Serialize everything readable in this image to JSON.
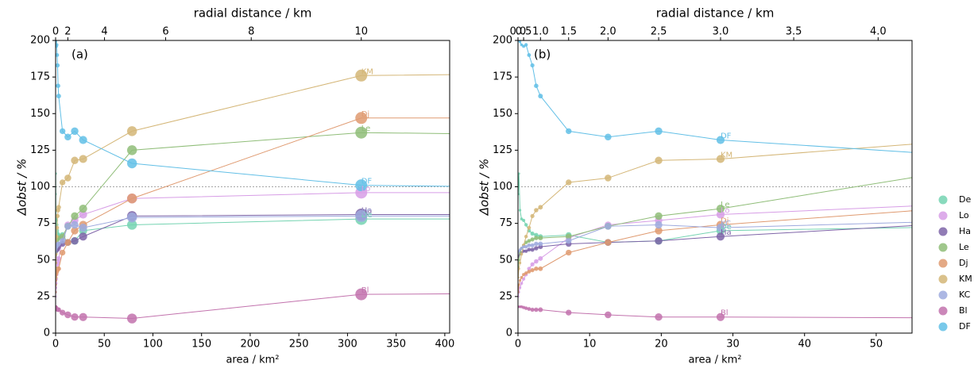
{
  "chart_data": [
    {
      "type": "line",
      "panel_label": "(a)",
      "x_label": "area / km²",
      "y_label": "Δobst / %",
      "x2_label": "radial distance / km",
      "xlim": [
        0,
        405
      ],
      "ylim": [
        0,
        200
      ],
      "xticks": [
        0,
        50,
        100,
        150,
        200,
        250,
        300,
        350,
        400
      ],
      "yticks": [
        0,
        25,
        50,
        75,
        100,
        125,
        150,
        175,
        200
      ],
      "x2ticks": [
        0,
        2,
        4,
        6,
        8,
        10
      ],
      "hline": 100,
      "x": [
        0.03,
        0.13,
        0.28,
        0.5,
        0.79,
        1.13,
        1.54,
        2.01,
        2.54,
        3.14,
        7.07,
        12.57,
        19.63,
        28.27,
        78.54,
        314.16,
        452.39
      ],
      "series": [
        {
          "name": "De",
          "color": "#74d3b1",
          "values": [
            95,
            109,
            84,
            78,
            77,
            74,
            70,
            68,
            67,
            66,
            67,
            62,
            63,
            70,
            74,
            78,
            78
          ]
        },
        {
          "name": "Lo",
          "color": "#d79de6",
          "values": [
            25,
            28,
            31,
            34,
            37,
            40,
            44,
            47,
            49,
            51,
            65,
            74,
            77,
            81,
            92,
            96,
            96
          ]
        },
        {
          "name": "Ha",
          "color": "#7e65a8",
          "values": [
            52,
            53,
            54,
            55,
            56,
            56,
            57,
            57,
            58,
            59,
            61,
            62,
            63,
            66,
            80,
            81,
            81
          ]
        },
        {
          "name": "Le",
          "color": "#8fbd78",
          "values": [
            45,
            50,
            55,
            58,
            60,
            62,
            63,
            64,
            65,
            65,
            66,
            73,
            80,
            85,
            125,
            137,
            136
          ]
        },
        {
          "name": "Dj",
          "color": "#df9a70",
          "values": [
            28,
            33,
            36,
            38,
            40,
            41,
            42,
            43,
            44,
            44,
            55,
            62,
            70,
            74,
            92,
            147,
            147
          ]
        },
        {
          "name": "KM",
          "color": "#d4b677",
          "values": [
            38,
            44,
            48,
            54,
            60,
            66,
            72,
            80,
            84,
            86,
            103,
            106,
            118,
            119,
            138,
            176,
            177
          ]
        },
        {
          "name": "KC",
          "color": "#9eaade",
          "values": [
            55,
            56,
            57,
            58,
            59,
            59,
            60,
            60,
            61,
            61,
            63,
            73,
            74,
            72,
            79,
            80,
            80
          ]
        },
        {
          "name": "Bl",
          "color": "#c272ad",
          "values": [
            18,
            18,
            18,
            18,
            17.5,
            17,
            16.5,
            16,
            16,
            16,
            14,
            12.5,
            11,
            11,
            10,
            26.5,
            27
          ]
        },
        {
          "name": "DF",
          "color": "#62bfe6",
          "values": [
            200,
            200,
            199,
            197,
            196,
            197,
            190,
            183,
            169,
            162,
            138,
            134,
            138,
            132,
            116,
            101,
            100
          ]
        }
      ]
    },
    {
      "type": "line",
      "panel_label": "(b)",
      "x_label": "area / km²",
      "y_label": "Δobst / %",
      "x2_label": "radial distance / km",
      "xlim": [
        0,
        55
      ],
      "ylim": [
        0,
        200
      ],
      "xticks": [
        0,
        10,
        20,
        30,
        40,
        50
      ],
      "yticks": [
        0,
        25,
        50,
        75,
        100,
        125,
        150,
        175,
        200
      ],
      "x2ticks": [
        {
          "value": 0,
          "label": "0.0"
        },
        0.5,
        {
          "value": 1,
          "label": "1.0"
        },
        1.5,
        {
          "value": 2,
          "label": "2.0"
        },
        2.5,
        {
          "value": 3,
          "label": "3.0"
        },
        3.5,
        {
          "value": 4,
          "label": "4.0"
        }
      ],
      "hline": 100,
      "x": [
        0.03,
        0.13,
        0.28,
        0.5,
        0.79,
        1.13,
        1.54,
        2.01,
        2.54,
        3.14,
        7.07,
        12.57,
        19.63,
        28.27,
        78.54,
        314.16,
        452.39
      ],
      "series": [
        {
          "name": "De",
          "color": "#74d3b1",
          "values": [
            95,
            109,
            84,
            78,
            77,
            74,
            70,
            68,
            67,
            66,
            67,
            62,
            63,
            70,
            74,
            78,
            78
          ]
        },
        {
          "name": "Lo",
          "color": "#d79de6",
          "values": [
            25,
            28,
            31,
            34,
            37,
            40,
            44,
            47,
            49,
            51,
            65,
            74,
            77,
            81,
            92,
            96,
            96
          ]
        },
        {
          "name": "Ha",
          "color": "#7e65a8",
          "values": [
            52,
            53,
            54,
            55,
            56,
            56,
            57,
            57,
            58,
            59,
            61,
            62,
            63,
            66,
            80,
            81,
            81
          ]
        },
        {
          "name": "Le",
          "color": "#8fbd78",
          "values": [
            45,
            50,
            55,
            58,
            60,
            62,
            63,
            64,
            65,
            65,
            66,
            73,
            80,
            85,
            125,
            137,
            136
          ]
        },
        {
          "name": "Dj",
          "color": "#df9a70",
          "values": [
            28,
            33,
            36,
            38,
            40,
            41,
            42,
            43,
            44,
            44,
            55,
            62,
            70,
            74,
            92,
            147,
            147
          ]
        },
        {
          "name": "KM",
          "color": "#d4b677",
          "values": [
            38,
            44,
            48,
            54,
            60,
            66,
            72,
            80,
            84,
            86,
            103,
            106,
            118,
            119,
            138,
            176,
            177
          ]
        },
        {
          "name": "KC",
          "color": "#9eaade",
          "values": [
            55,
            56,
            57,
            58,
            59,
            59,
            60,
            60,
            61,
            61,
            63,
            73,
            74,
            72,
            79,
            80,
            80
          ]
        },
        {
          "name": "Bl",
          "color": "#c272ad",
          "values": [
            18,
            18,
            18,
            18,
            17.5,
            17,
            16.5,
            16,
            16,
            16,
            14,
            12.5,
            11,
            11,
            10,
            26.5,
            27
          ]
        },
        {
          "name": "DF",
          "color": "#62bfe6",
          "values": [
            200,
            200,
            199,
            197,
            196,
            197,
            190,
            183,
            169,
            162,
            138,
            134,
            138,
            132,
            116,
            101,
            100
          ]
        }
      ]
    }
  ]
}
